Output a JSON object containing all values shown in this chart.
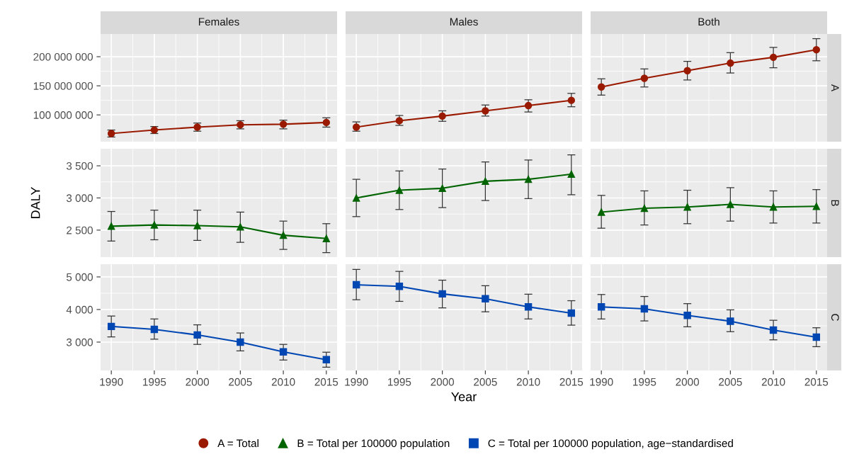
{
  "chart_data": [
    {
      "type": "line",
      "title": "Females",
      "x": [
        1990,
        1995,
        2000,
        2005,
        2010,
        2015
      ],
      "xlim": [
        1988.75,
        2016.25
      ],
      "xticks": [
        1990,
        1995,
        2000,
        2005,
        2010,
        2015
      ],
      "ylim": [
        54000000,
        239000000
      ],
      "yticks": [
        {
          "value": 100000000,
          "label": "100 000 000"
        },
        {
          "value": 150000000,
          "label": "150 000 000"
        },
        {
          "value": 200000000,
          "label": "200 000 000"
        }
      ],
      "tick_labels": "y",
      "grid": true,
      "marker": "circle",
      "legend": "bottom",
      "series": [
        {
          "name": "A = Total",
          "color": "#9a1a00",
          "values": [
            68000000,
            74000000,
            79000000,
            83000000,
            84000000,
            87000000
          ],
          "errors": [
            [
              62000000,
              74000000
            ],
            [
              68000000,
              80000000
            ],
            [
              72000000,
              86000000
            ],
            [
              76000000,
              90000000
            ],
            [
              76000000,
              91000000
            ],
            [
              79000000,
              95000000
            ]
          ]
        }
      ]
    },
    {
      "type": "line",
      "title": "Males",
      "x": [
        1990,
        1995,
        2000,
        2005,
        2010,
        2015
      ],
      "xlim": [
        1988.75,
        2016.25
      ],
      "xticks": [
        1990,
        1995,
        2000,
        2005,
        2010,
        2015
      ],
      "ylim": [
        54000000,
        239000000
      ],
      "yticks": [
        100000000,
        150000000,
        200000000
      ],
      "tick_labels": false,
      "grid": true,
      "marker": "circle",
      "series": [
        {
          "color": "#9a1a00",
          "values": [
            79000000,
            90000000,
            98000000,
            107000000,
            116000000,
            125000000
          ],
          "errors": [
            [
              72000000,
              88000000
            ],
            [
              82000000,
              99000000
            ],
            [
              89000000,
              107000000
            ],
            [
              98000000,
              117000000
            ],
            [
              105000000,
              126000000
            ],
            [
              114000000,
              137000000
            ]
          ]
        }
      ]
    },
    {
      "type": "line",
      "title": "Both",
      "annotations": [
        "A"
      ],
      "x": [
        1990,
        1995,
        2000,
        2005,
        2010,
        2015
      ],
      "xlim": [
        1988.75,
        2016.25
      ],
      "xticks": [
        1990,
        1995,
        2000,
        2005,
        2010,
        2015
      ],
      "ylim": [
        54000000,
        239000000
      ],
      "yticks": [
        100000000,
        150000000,
        200000000
      ],
      "tick_labels": false,
      "grid": true,
      "marker": "circle",
      "series": [
        {
          "color": "#9a1a00",
          "values": [
            148000000,
            163000000,
            176000000,
            189000000,
            199000000,
            212000000
          ],
          "errors": [
            [
              134000000,
              162000000
            ],
            [
              148000000,
              179000000
            ],
            [
              160000000,
              192000000
            ],
            [
              172000000,
              207000000
            ],
            [
              181000000,
              216000000
            ],
            [
              193000000,
              231000000
            ]
          ]
        }
      ]
    },
    {
      "type": "line",
      "ylabel": "DALY",
      "x": [
        1990,
        1995,
        2000,
        2005,
        2010,
        2015
      ],
      "xlim": [
        1988.75,
        2016.25
      ],
      "xticks": [
        1990,
        1995,
        2000,
        2005,
        2010,
        2015
      ],
      "ylim": [
        2080,
        3765
      ],
      "yticks": [
        {
          "value": 2500,
          "label": "2 500"
        },
        {
          "value": 3000,
          "label": "3 000"
        },
        {
          "value": 3500,
          "label": "3 500"
        }
      ],
      "tick_labels": "y",
      "grid": true,
      "marker": "triangle",
      "legend": "bottom",
      "series": [
        {
          "name": "B = Total per 100000 population",
          "color": "#006400",
          "values": [
            2560,
            2580,
            2570,
            2550,
            2420,
            2370
          ],
          "errors": [
            [
              2330,
              2790
            ],
            [
              2350,
              2810
            ],
            [
              2340,
              2810
            ],
            [
              2310,
              2780
            ],
            [
              2200,
              2640
            ],
            [
              2150,
              2600
            ]
          ]
        }
      ]
    },
    {
      "type": "line",
      "x": [
        1990,
        1995,
        2000,
        2005,
        2010,
        2015
      ],
      "xlim": [
        1988.75,
        2016.25
      ],
      "xticks": [
        1990,
        1995,
        2000,
        2005,
        2010,
        2015
      ],
      "ylim": [
        2080,
        3765
      ],
      "yticks": [
        2500,
        3000,
        3500
      ],
      "tick_labels": false,
      "grid": true,
      "marker": "triangle",
      "series": [
        {
          "color": "#006400",
          "values": [
            3000,
            3120,
            3150,
            3260,
            3290,
            3370
          ],
          "errors": [
            [
              2710,
              3290
            ],
            [
              2820,
              3420
            ],
            [
              2850,
              3450
            ],
            [
              2960,
              3560
            ],
            [
              2990,
              3590
            ],
            [
              3050,
              3670
            ]
          ]
        }
      ]
    },
    {
      "type": "line",
      "annotations": [
        "B"
      ],
      "x": [
        1990,
        1995,
        2000,
        2005,
        2010,
        2015
      ],
      "xlim": [
        1988.75,
        2016.25
      ],
      "xticks": [
        1990,
        1995,
        2000,
        2005,
        2010,
        2015
      ],
      "ylim": [
        2080,
        3765
      ],
      "yticks": [
        2500,
        3000,
        3500
      ],
      "tick_labels": false,
      "grid": true,
      "marker": "triangle",
      "series": [
        {
          "color": "#006400",
          "values": [
            2780,
            2840,
            2860,
            2900,
            2860,
            2870
          ],
          "errors": [
            [
              2530,
              3040
            ],
            [
              2580,
              3110
            ],
            [
              2600,
              3120
            ],
            [
              2640,
              3160
            ],
            [
              2610,
              3110
            ],
            [
              2610,
              3130
            ]
          ]
        }
      ]
    },
    {
      "type": "line",
      "x": [
        1990,
        1995,
        2000,
        2005,
        2010,
        2015
      ],
      "xlim": [
        1988.75,
        2016.25
      ],
      "xticks": [
        1990,
        1995,
        2000,
        2005,
        2010,
        2015
      ],
      "ylim": [
        2130,
        5390
      ],
      "yticks": [
        {
          "value": 3000,
          "label": "3 000"
        },
        {
          "value": 4000,
          "label": "4 000"
        },
        {
          "value": 5000,
          "label": "5 000"
        }
      ],
      "grid": true,
      "marker": "square",
      "legend": "bottom",
      "series": [
        {
          "name": "C = Total per 100000 population, age−standardised",
          "color": "#0047b3",
          "values": [
            3480,
            3390,
            3220,
            3000,
            2700,
            2460
          ],
          "errors": [
            [
              3160,
              3800
            ],
            [
              3090,
              3710
            ],
            [
              2930,
              3530
            ],
            [
              2730,
              3280
            ],
            [
              2450,
              2930
            ],
            [
              2230,
              2690
            ]
          ]
        }
      ]
    },
    {
      "type": "line",
      "xlabel": "Year",
      "x": [
        1990,
        1995,
        2000,
        2005,
        2010,
        2015
      ],
      "xlim": [
        1988.75,
        2016.25
      ],
      "xticks": [
        1990,
        1995,
        2000,
        2005,
        2010,
        2015
      ],
      "ylim": [
        2130,
        5390
      ],
      "yticks": [
        3000,
        4000,
        5000
      ],
      "tick_labels": "x",
      "grid": true,
      "marker": "square",
      "series": [
        {
          "color": "#0047b3",
          "values": [
            4760,
            4710,
            4480,
            4330,
            4080,
            3890
          ],
          "errors": [
            [
              4300,
              5230
            ],
            [
              4250,
              5170
            ],
            [
              4050,
              4900
            ],
            [
              3930,
              4730
            ],
            [
              3710,
              4470
            ],
            [
              3520,
              4270
            ]
          ]
        }
      ]
    },
    {
      "type": "line",
      "annotations": [
        "C"
      ],
      "x": [
        1990,
        1995,
        2000,
        2005,
        2010,
        2015
      ],
      "xlim": [
        1988.75,
        2016.25
      ],
      "xticks": [
        1990,
        1995,
        2000,
        2005,
        2010,
        2015
      ],
      "ylim": [
        2130,
        5390
      ],
      "yticks": [
        3000,
        4000,
        5000
      ],
      "tick_labels": "x",
      "grid": true,
      "marker": "square",
      "series": [
        {
          "color": "#0047b3",
          "values": [
            4080,
            4020,
            3820,
            3640,
            3370,
            3150
          ],
          "errors": [
            [
              3710,
              4460
            ],
            [
              3650,
              4400
            ],
            [
              3470,
              4180
            ],
            [
              3320,
              3990
            ],
            [
              3070,
              3670
            ],
            [
              2860,
              3440
            ]
          ]
        }
      ]
    }
  ]
}
